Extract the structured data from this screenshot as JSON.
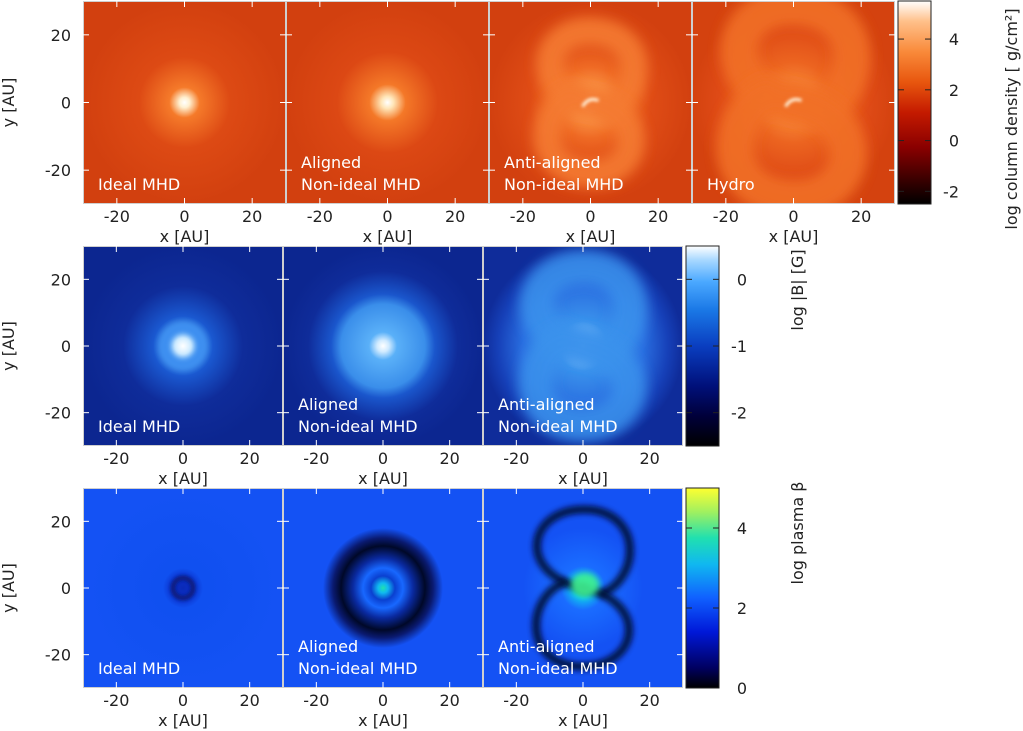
{
  "chart_data": {
    "type": "heatmap",
    "rows": [
      {
        "quantity": "log column density",
        "colorbar_label": "log column density [ g/cm²]",
        "colorbar_range": [
          -2.5,
          5.5
        ],
        "colorbar_ticks": [
          "-2",
          "0",
          "2",
          "4"
        ],
        "colorbar_tick_values": [
          -2,
          0,
          2,
          4
        ],
        "colormap": [
          "#000000",
          "#3a0000",
          "#8a0000",
          "#c41a00",
          "#e8560e",
          "#f98a3a",
          "#ffc08a",
          "#ffffff"
        ],
        "panels": [
          {
            "line1": "Ideal MHD",
            "line2": ""
          },
          {
            "line1": "Aligned",
            "line2": "Non-ideal MHD"
          },
          {
            "line1": "Anti-aligned",
            "line2": "Non-ideal MHD"
          },
          {
            "line1": "Hydro",
            "line2": ""
          }
        ]
      },
      {
        "quantity": "log |B|",
        "colorbar_label": "log |B| [G]",
        "colorbar_range": [
          -2.5,
          0.5
        ],
        "colorbar_ticks": [
          "-2",
          "-1",
          "0"
        ],
        "colorbar_tick_values": [
          -2,
          -1,
          0
        ],
        "colormap": [
          "#000000",
          "#00003a",
          "#00107a",
          "#0a3ec0",
          "#1a78e6",
          "#4aa8ff",
          "#a8d8ff",
          "#ffffff"
        ],
        "panels": [
          {
            "line1": "Ideal MHD",
            "line2": ""
          },
          {
            "line1": "Aligned",
            "line2": "Non-ideal MHD"
          },
          {
            "line1": "Anti-aligned",
            "line2": "Non-ideal MHD"
          }
        ]
      },
      {
        "quantity": "log plasma β",
        "colorbar_label": "log plasma β",
        "colorbar_range": [
          0,
          5
        ],
        "colorbar_ticks": [
          "0",
          "2",
          "4"
        ],
        "colorbar_tick_values": [
          0,
          2,
          4
        ],
        "colormap": [
          "#000000",
          "#000060",
          "#0018d8",
          "#1060ff",
          "#10b8f0",
          "#20e0b0",
          "#a0f060",
          "#ffff30"
        ],
        "panels": [
          {
            "line1": "Ideal MHD",
            "line2": ""
          },
          {
            "line1": "Aligned",
            "line2": "Non-ideal MHD"
          },
          {
            "line1": "Anti-aligned",
            "line2": "Non-ideal MHD"
          }
        ]
      }
    ],
    "xlabel": "x [AU]",
    "ylabel": "y [AU]",
    "xlim": [
      -30,
      30
    ],
    "ylim": [
      -30,
      30
    ],
    "xticks": [
      "-20",
      "0",
      "20"
    ],
    "xtick_values": [
      -20,
      0,
      20
    ],
    "yticks": [
      "20",
      "0",
      "-20"
    ],
    "ytick_values": [
      20,
      0,
      -20
    ]
  }
}
